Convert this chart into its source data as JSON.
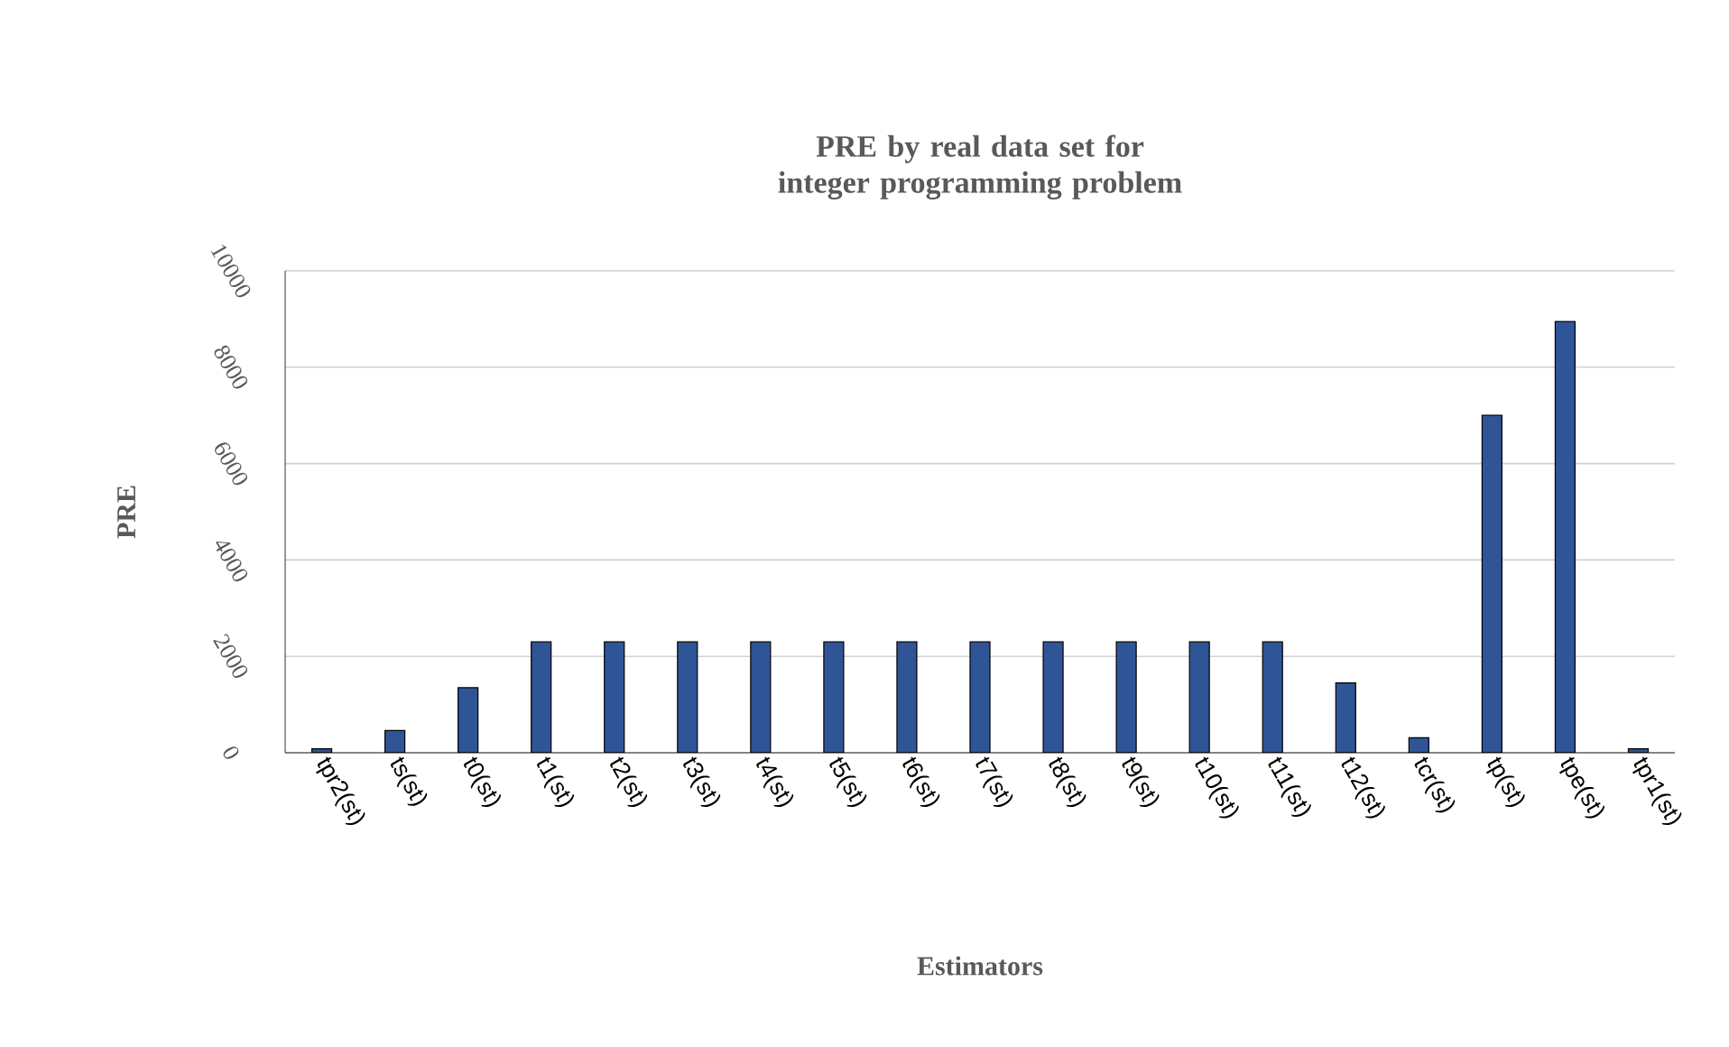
{
  "chart_data": {
    "type": "bar",
    "title": "PRE by real data set for integer programming problem",
    "xlabel": "Estimators",
    "ylabel": "PRE",
    "categories": [
      "tpr2(st)",
      "ts(st)",
      "t0(st)",
      "t1(st)",
      "t2(st)",
      "t3(st)",
      "t4(st)",
      "t5(st)",
      "t6(st)",
      "t7(st)",
      "t8(st)",
      "t9(st)",
      "t10(st)",
      "t11(st)",
      "t12(st)",
      "tcr(st)",
      "tp(st)",
      "tpe(st)",
      "tpr1(st)"
    ],
    "values": [
      80,
      460,
      1350,
      2300,
      2300,
      2300,
      2300,
      2300,
      2300,
      2300,
      2300,
      2300,
      2300,
      2300,
      1450,
      310,
      7000,
      8950,
      80
    ],
    "color": "#2f5597",
    "ylim": [
      0,
      10000
    ],
    "yticks": [
      0,
      2000,
      4000,
      6000,
      8000,
      10000
    ],
    "grid": "y"
  }
}
